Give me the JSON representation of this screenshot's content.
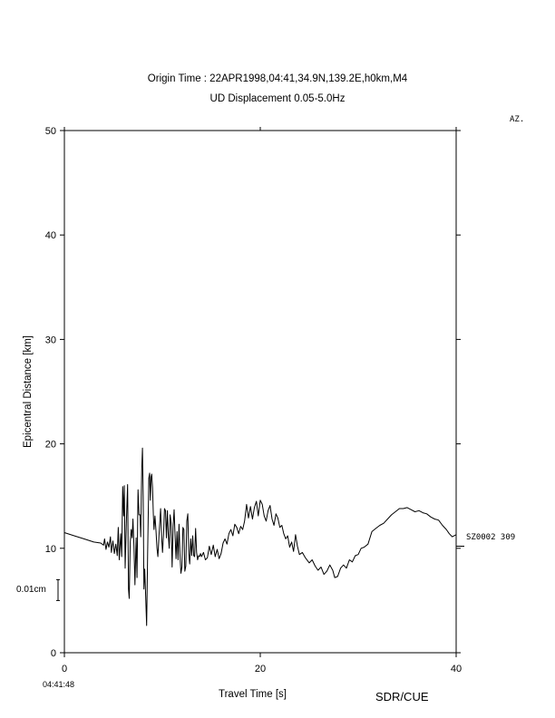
{
  "chart_data": {
    "type": "line",
    "title": "Origin Time : 22APR1998,04:41,34.9N,139.2E,h0km,M4",
    "subtitle": "UD Displacement 0.05-5.0Hz",
    "xlabel": "Travel Time [s]",
    "ylabel": "Epicentral Distance [km]",
    "xlim": [
      0,
      40
    ],
    "ylim": [
      0,
      50
    ],
    "xticks": [
      0,
      20,
      40
    ],
    "yticks": [
      0,
      10,
      20,
      30,
      40,
      50
    ],
    "grid": false,
    "legend": "none",
    "az_header": "AZ.",
    "origin_clock": "04:41:48",
    "credit": "SDR/CUE",
    "scale_bar": {
      "label": "0.01cm",
      "center_km": 6.0,
      "half_height_km": 1.0
    },
    "series": [
      {
        "station_label": "SZ0002 309",
        "distance_km": 10.2,
        "color": "#000000",
        "points": [
          [
            0,
            11.5
          ],
          [
            1,
            11.2
          ],
          [
            2,
            10.9
          ],
          [
            3,
            10.6
          ],
          [
            3.7,
            10.5
          ],
          [
            4.0,
            10.3
          ],
          [
            4.1,
            10.9
          ],
          [
            4.25,
            9.9
          ],
          [
            4.4,
            10.6
          ],
          [
            4.55,
            10.1
          ],
          [
            4.7,
            11.1
          ],
          [
            4.8,
            9.6
          ],
          [
            4.95,
            10.7
          ],
          [
            5.1,
            9.5
          ],
          [
            5.25,
            10.4
          ],
          [
            5.4,
            9.3
          ],
          [
            5.5,
            12.0
          ],
          [
            5.6,
            8.9
          ],
          [
            5.75,
            11.4
          ],
          [
            5.85,
            9.2
          ],
          [
            5.95,
            15.9
          ],
          [
            6.05,
            13.1
          ],
          [
            6.12,
            16.0
          ],
          [
            6.2,
            8.1
          ],
          [
            6.32,
            12.4
          ],
          [
            6.45,
            16.1
          ],
          [
            6.55,
            6.1
          ],
          [
            6.62,
            5.2
          ],
          [
            6.72,
            10.6
          ],
          [
            6.82,
            11.8
          ],
          [
            6.92,
            11.0
          ],
          [
            7.0,
            12.8
          ],
          [
            7.1,
            10.2
          ],
          [
            7.2,
            6.5
          ],
          [
            7.32,
            11.0
          ],
          [
            7.42,
            7.2
          ],
          [
            7.52,
            15.6
          ],
          [
            7.62,
            13.2
          ],
          [
            7.72,
            13.2
          ],
          [
            7.8,
            11.1
          ],
          [
            7.9,
            17.6
          ],
          [
            7.97,
            19.6
          ],
          [
            8.05,
            15.0
          ],
          [
            8.12,
            6.1
          ],
          [
            8.2,
            8.0
          ],
          [
            8.3,
            5.5
          ],
          [
            8.4,
            2.6
          ],
          [
            8.5,
            9.5
          ],
          [
            8.62,
            16.7
          ],
          [
            8.7,
            17.2
          ],
          [
            8.78,
            14.6
          ],
          [
            8.85,
            16.8
          ],
          [
            8.92,
            17.1
          ],
          [
            9.0,
            15.8
          ],
          [
            9.08,
            13.2
          ],
          [
            9.15,
            11.8
          ],
          [
            9.25,
            13.1
          ],
          [
            9.35,
            11.7
          ],
          [
            9.45,
            10.0
          ],
          [
            9.55,
            9.2
          ],
          [
            9.65,
            11.0
          ],
          [
            9.72,
            12.2
          ],
          [
            9.82,
            13.8
          ],
          [
            9.92,
            11.3
          ],
          [
            10.02,
            9.6
          ],
          [
            10.12,
            11.3
          ],
          [
            10.22,
            13.8
          ],
          [
            10.32,
            13.6
          ],
          [
            10.42,
            11.0
          ],
          [
            10.52,
            13.6
          ],
          [
            10.6,
            11.4
          ],
          [
            10.7,
            10.0
          ],
          [
            10.8,
            13.2
          ],
          [
            10.9,
            12.4
          ],
          [
            11.0,
            8.2
          ],
          [
            11.1,
            12.1
          ],
          [
            11.2,
            13.7
          ],
          [
            11.3,
            11.3
          ],
          [
            11.4,
            9.0
          ],
          [
            11.5,
            11.6
          ],
          [
            11.6,
            8.9
          ],
          [
            11.7,
            12.3
          ],
          [
            11.8,
            9.5
          ],
          [
            11.9,
            7.6
          ],
          [
            12.0,
            8.2
          ],
          [
            12.1,
            12.0
          ],
          [
            12.2,
            11.8
          ],
          [
            12.3,
            7.8
          ],
          [
            12.4,
            8.3
          ],
          [
            12.5,
            12.6
          ],
          [
            12.6,
            13.3
          ],
          [
            12.7,
            9.4
          ],
          [
            12.8,
            8.5
          ],
          [
            12.9,
            10.9
          ],
          [
            13.0,
            9.3
          ],
          [
            13.1,
            11.2
          ],
          [
            13.2,
            9.3
          ],
          [
            13.3,
            9.2
          ],
          [
            13.4,
            11.9
          ],
          [
            13.5,
            9.6
          ],
          [
            13.6,
            8.9
          ],
          [
            13.7,
            9.3
          ],
          [
            13.8,
            9.2
          ],
          [
            13.9,
            9.5
          ],
          [
            14.0,
            9.2
          ],
          [
            14.2,
            9.6
          ],
          [
            14.4,
            8.9
          ],
          [
            14.6,
            9.1
          ],
          [
            14.8,
            10.2
          ],
          [
            15.0,
            9.4
          ],
          [
            15.2,
            10.3
          ],
          [
            15.4,
            9.2
          ],
          [
            15.6,
            9.9
          ],
          [
            15.8,
            9.0
          ],
          [
            16.0,
            9.5
          ],
          [
            16.2,
            10.5
          ],
          [
            16.4,
            10.9
          ],
          [
            16.6,
            10.4
          ],
          [
            16.8,
            11.4
          ],
          [
            17.0,
            11.8
          ],
          [
            17.2,
            11.2
          ],
          [
            17.4,
            12.3
          ],
          [
            17.6,
            12.0
          ],
          [
            17.8,
            11.4
          ],
          [
            18.0,
            12.1
          ],
          [
            18.2,
            11.8
          ],
          [
            18.4,
            12.6
          ],
          [
            18.6,
            14.2
          ],
          [
            18.8,
            12.9
          ],
          [
            19.0,
            14.0
          ],
          [
            19.2,
            12.8
          ],
          [
            19.4,
            13.9
          ],
          [
            19.6,
            14.5
          ],
          [
            19.8,
            13.1
          ],
          [
            20.0,
            14.6
          ],
          [
            20.2,
            14.2
          ],
          [
            20.4,
            13.1
          ],
          [
            20.6,
            12.6
          ],
          [
            20.8,
            13.6
          ],
          [
            21.0,
            14.1
          ],
          [
            21.2,
            12.8
          ],
          [
            21.4,
            12.2
          ],
          [
            21.6,
            13.3
          ],
          [
            21.8,
            12.9
          ],
          [
            22.0,
            12.0
          ],
          [
            22.2,
            12.2
          ],
          [
            22.4,
            11.4
          ],
          [
            22.6,
            10.9
          ],
          [
            22.8,
            11.2
          ],
          [
            23.0,
            10.1
          ],
          [
            23.2,
            10.6
          ],
          [
            23.4,
            9.7
          ],
          [
            23.6,
            11.3
          ],
          [
            23.8,
            10.2
          ],
          [
            24.0,
            9.4
          ],
          [
            24.3,
            9.6
          ],
          [
            24.6,
            9.1
          ],
          [
            25.0,
            8.6
          ],
          [
            25.3,
            8.9
          ],
          [
            25.6,
            8.3
          ],
          [
            25.9,
            7.9
          ],
          [
            26.2,
            8.2
          ],
          [
            26.5,
            7.5
          ],
          [
            26.8,
            7.8
          ],
          [
            27.1,
            8.4
          ],
          [
            27.4,
            7.9
          ],
          [
            27.6,
            7.2
          ],
          [
            27.9,
            7.3
          ],
          [
            28.2,
            8.1
          ],
          [
            28.5,
            8.4
          ],
          [
            28.8,
            8.1
          ],
          [
            29.1,
            8.9
          ],
          [
            29.4,
            8.7
          ],
          [
            29.7,
            9.3
          ],
          [
            30.0,
            9.4
          ],
          [
            30.3,
            10.0
          ],
          [
            30.6,
            10.1
          ],
          [
            31.0,
            10.4
          ],
          [
            31.4,
            11.6
          ],
          [
            31.8,
            11.9
          ],
          [
            32.2,
            12.2
          ],
          [
            32.6,
            12.4
          ],
          [
            33.0,
            12.8
          ],
          [
            33.4,
            13.2
          ],
          [
            33.8,
            13.5
          ],
          [
            34.2,
            13.8
          ],
          [
            34.6,
            13.8
          ],
          [
            35.0,
            13.9
          ],
          [
            35.4,
            13.7
          ],
          [
            35.8,
            13.5
          ],
          [
            36.2,
            13.6
          ],
          [
            36.6,
            13.4
          ],
          [
            37.0,
            13.3
          ],
          [
            37.4,
            13.0
          ],
          [
            37.8,
            12.8
          ],
          [
            38.2,
            12.7
          ],
          [
            38.6,
            12.2
          ],
          [
            39.0,
            11.8
          ],
          [
            39.3,
            11.4
          ],
          [
            39.6,
            11.1
          ],
          [
            40.0,
            11.3
          ]
        ]
      }
    ]
  }
}
